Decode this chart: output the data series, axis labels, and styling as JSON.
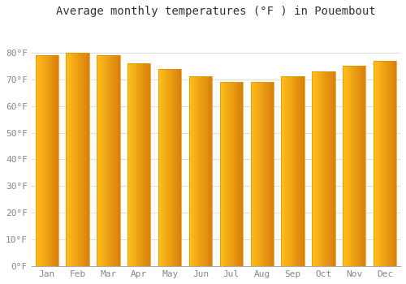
{
  "months": [
    "Jan",
    "Feb",
    "Mar",
    "Apr",
    "May",
    "Jun",
    "Jul",
    "Aug",
    "Sep",
    "Oct",
    "Nov",
    "Dec"
  ],
  "values": [
    79,
    80,
    79,
    76,
    74,
    71,
    69,
    69,
    71,
    73,
    75,
    77
  ],
  "bar_color_left": "#FFD040",
  "bar_color_right": "#F0A000",
  "bar_edge_color": "#E09000",
  "title": "Average monthly temperatures (°F ) in Pouembout",
  "ylim": [
    0,
    90
  ],
  "yticks": [
    0,
    10,
    20,
    30,
    40,
    50,
    60,
    70,
    80
  ],
  "ytick_labels": [
    "0°F",
    "10°F",
    "20°F",
    "30°F",
    "40°F",
    "50°F",
    "60°F",
    "70°F",
    "80°F"
  ],
  "background_color": "#FFFFFF",
  "plot_bg_color": "#FFFFFF",
  "grid_color": "#DDDDDD",
  "title_fontsize": 10,
  "tick_fontsize": 8,
  "bar_width": 0.75
}
